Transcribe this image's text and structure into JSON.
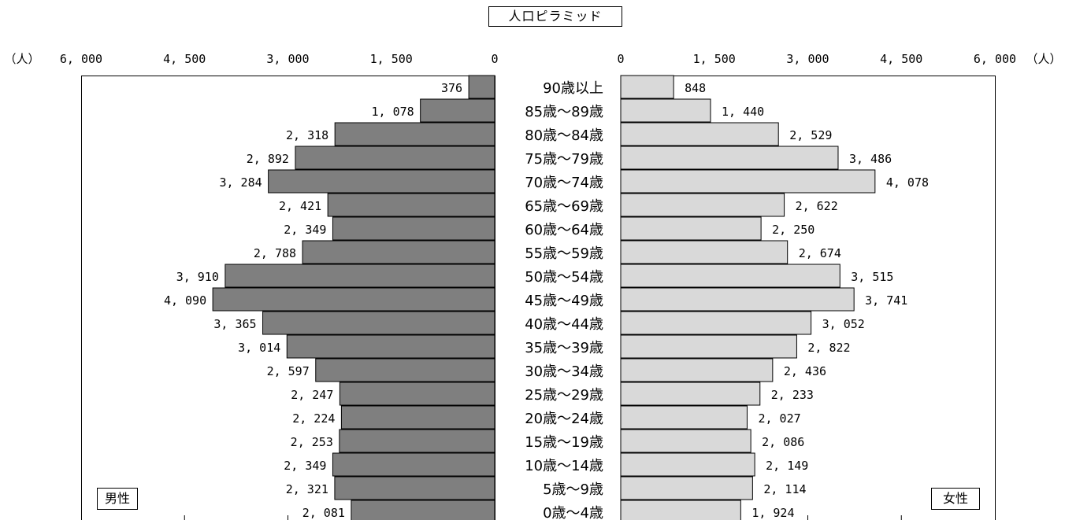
{
  "chart_data": {
    "type": "bar",
    "title": "人口ピラミッド",
    "unit_label": "（人）",
    "categories": [
      "90歳以上",
      "85歳～89歳",
      "80歳～84歳",
      "75歳～79歳",
      "70歳～74歳",
      "65歳～69歳",
      "60歳～64歳",
      "55歳～59歳",
      "50歳～54歳",
      "45歳～49歳",
      "40歳～44歳",
      "35歳～39歳",
      "30歳～34歳",
      "25歳～29歳",
      "20歳～24歳",
      "15歳～19歳",
      "10歳～14歳",
      "5歳～9歳",
      "0歳～4歳"
    ],
    "series": [
      {
        "name": "男性",
        "color": "#7f7f7f",
        "values": [
          376,
          1078,
          2318,
          2892,
          3284,
          2421,
          2349,
          2788,
          3910,
          4090,
          3365,
          3014,
          2597,
          2247,
          2224,
          2253,
          2349,
          2321,
          2081
        ],
        "labels": [
          "376",
          "1, 078",
          "2, 318",
          "2, 892",
          "3, 284",
          "2, 421",
          "2, 349",
          "2, 788",
          "3, 910",
          "4, 090",
          "3, 365",
          "3, 014",
          "2, 597",
          "2, 247",
          "2, 224",
          "2, 253",
          "2, 349",
          "2, 321",
          "2, 081"
        ]
      },
      {
        "name": "女性",
        "color": "#d9d9d9",
        "values": [
          848,
          1440,
          2529,
          3486,
          4078,
          2622,
          2250,
          2674,
          3515,
          3741,
          3052,
          2822,
          2436,
          2233,
          2027,
          2086,
          2149,
          2114,
          1924
        ],
        "labels": [
          "848",
          "1, 440",
          "2, 529",
          "3, 486",
          "4, 078",
          "2, 622",
          "2, 250",
          "2, 674",
          "3, 515",
          "3, 741",
          "3, 052",
          "2, 822",
          "2, 436",
          "2, 233",
          "2, 027",
          "2, 086",
          "2, 149",
          "2, 114",
          "1, 924"
        ]
      }
    ],
    "xlim": [
      0,
      6000
    ],
    "male_ticks": [
      {
        "value": 6000,
        "label": "6, 000"
      },
      {
        "value": 4500,
        "label": "4, 500"
      },
      {
        "value": 3000,
        "label": "3, 000"
      },
      {
        "value": 1500,
        "label": "1, 500"
      },
      {
        "value": 0,
        "label": "0"
      }
    ],
    "female_ticks": [
      {
        "value": 0,
        "label": "0"
      },
      {
        "value": 1500,
        "label": "1, 500"
      },
      {
        "value": 3000,
        "label": "3, 000"
      },
      {
        "value": 4500,
        "label": "4, 500"
      },
      {
        "value": 6000,
        "label": "6, 000"
      }
    ],
    "grid": false,
    "legend": "none"
  }
}
